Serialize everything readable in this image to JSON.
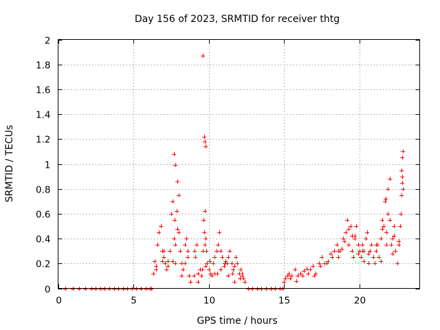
{
  "chart_data": {
    "type": "scatter",
    "title": "Day 156 of 2023, SRMTID for receiver thtg",
    "xlabel": "GPS time / hours",
    "ylabel": "SRMTID / TECUs",
    "xlim": [
      0,
      24
    ],
    "ylim": [
      0,
      2
    ],
    "x_ticks": [
      0,
      5,
      10,
      15,
      20
    ],
    "x_tick_labels": [
      "0",
      "5",
      "10",
      "15",
      "20"
    ],
    "y_ticks": [
      0,
      0.2,
      0.4,
      0.6,
      0.8,
      1,
      1.2,
      1.4,
      1.6,
      1.8,
      2
    ],
    "y_tick_labels": [
      "0",
      "0.2",
      "0.4",
      "0.6",
      "0.8",
      "1",
      "1.2",
      "1.4",
      "1.6",
      "1.8",
      "2"
    ],
    "grid": true,
    "marker": "+",
    "color": "#ff0000",
    "series": [
      {
        "name": "SRMTID",
        "x": [
          0.5,
          1.0,
          1.4,
          1.8,
          2.2,
          2.5,
          2.8,
          3.1,
          3.4,
          3.7,
          4.0,
          4.3,
          4.6,
          4.9,
          5.2,
          5.5,
          5.8,
          6.1,
          6.2,
          6.3,
          6.4,
          6.5,
          6.6,
          6.7,
          6.8,
          6.9,
          7.0,
          7.1,
          7.2,
          7.3,
          7.4,
          7.5,
          7.6,
          7.7,
          7.75,
          7.8,
          7.85,
          7.9,
          8.0,
          8.1,
          8.2,
          8.3,
          8.4,
          8.5,
          8.6,
          8.7,
          8.8,
          9.0,
          9.1,
          9.2,
          9.3,
          9.4,
          9.5,
          9.6,
          9.65,
          9.7,
          9.72,
          9.75,
          9.8,
          9.85,
          9.9,
          10.0,
          10.1,
          10.2,
          10.3,
          10.4,
          10.5,
          10.6,
          10.7,
          10.8,
          10.9,
          11.0,
          11.1,
          11.2,
          11.3,
          11.4,
          11.5,
          11.6,
          11.7,
          11.8,
          11.9,
          12.0,
          12.1,
          12.2,
          12.3,
          12.4,
          12.6,
          12.9,
          13.2,
          13.5,
          13.8,
          14.1,
          14.4,
          14.7,
          14.9,
          15.0,
          15.1,
          15.2,
          15.3,
          15.5,
          15.7,
          15.9,
          16.1,
          16.3,
          16.5,
          16.7,
          16.9,
          17.1,
          17.3,
          17.5,
          17.7,
          17.9,
          18.1,
          18.3,
          18.5,
          18.6,
          18.7,
          18.9,
          19.1,
          19.2,
          19.3,
          19.4,
          19.5,
          19.6,
          19.7,
          19.8,
          19.9,
          20.0,
          20.1,
          20.2,
          20.3,
          20.4,
          20.5,
          20.6,
          20.7,
          20.8,
          20.9,
          21.0,
          21.1,
          21.2,
          21.3,
          21.4,
          21.5,
          21.6,
          21.7,
          21.8,
          21.9,
          22.0,
          22.1,
          22.2,
          22.3,
          22.4,
          22.5,
          22.6,
          22.7,
          22.75,
          22.8,
          22.85,
          22.9,
          6.5,
          6.9,
          7.3,
          7.8,
          8.2,
          8.6,
          9.3,
          9.8,
          10.4,
          10.8,
          11.3,
          11.7,
          12.2,
          15.4,
          15.8,
          16.2,
          16.6,
          17.0,
          17.4,
          17.8,
          18.2,
          18.8,
          19.0,
          19.5,
          19.9,
          20.3,
          20.7,
          21.1,
          21.5,
          21.9,
          22.3,
          22.6,
          7.0,
          7.6,
          8.0,
          8.4,
          9.05,
          9.55,
          10.05,
          10.55,
          11.05,
          11.55,
          12.05,
          18.6,
          19.3,
          19.7,
          20.2,
          20.6,
          21.0,
          21.4,
          21.8,
          22.2,
          22.7,
          22.8,
          22.85,
          22.9,
          7.7,
          7.8,
          7.9,
          9.7,
          9.75,
          9.8,
          9.62,
          21.75,
          22.0,
          22.85
        ],
        "y": [
          0,
          0,
          0,
          0,
          0,
          0,
          0,
          0,
          0,
          0,
          0,
          0,
          0,
          0,
          0,
          0,
          0,
          0,
          0,
          0.12,
          0.22,
          0.18,
          0.35,
          0.45,
          0.5,
          0.3,
          0.25,
          0.2,
          0.15,
          0.22,
          0.3,
          0.6,
          0.7,
          0.4,
          0.55,
          0.35,
          0.62,
          0.48,
          0.75,
          0.3,
          0.2,
          0.15,
          0.35,
          0.4,
          0.3,
          0.1,
          0.05,
          0.1,
          0.25,
          0.35,
          0.05,
          0.15,
          0.1,
          0.3,
          0.55,
          0.45,
          0.62,
          0.35,
          0.4,
          0.3,
          0.2,
          0.15,
          0.12,
          0.1,
          0.2,
          0.25,
          0.3,
          0.35,
          0.45,
          0.3,
          0.25,
          0.18,
          0.22,
          0.2,
          0.25,
          0.3,
          0.2,
          0.15,
          0.18,
          0.25,
          0.2,
          0.12,
          0.15,
          0.1,
          0.08,
          0.05,
          0,
          0,
          0,
          0,
          0,
          0,
          0,
          0,
          0,
          0.05,
          0.08,
          0.1,
          0.12,
          0.1,
          0.15,
          0.1,
          0.12,
          0.14,
          0.16,
          0.15,
          0.18,
          0.12,
          0.2,
          0.25,
          0.2,
          0.22,
          0.28,
          0.3,
          0.35,
          0.3,
          0.3,
          0.4,
          0.45,
          0.55,
          0.35,
          0.5,
          0.3,
          0.25,
          0.4,
          0.5,
          0.35,
          0.3,
          0.25,
          0.35,
          0.3,
          0.4,
          0.45,
          0.2,
          0.3,
          0.35,
          0.25,
          0.2,
          0.3,
          0.35,
          0.25,
          0.4,
          0.55,
          0.5,
          0.7,
          0.45,
          0.8,
          0.55,
          0.35,
          0.4,
          0.5,
          0.3,
          0.2,
          0.35,
          0.5,
          0.6,
          0.95,
          0.85,
          0.8,
          0.15,
          0.22,
          0.18,
          0.2,
          0.1,
          0.25,
          0.12,
          0.18,
          0.12,
          0.15,
          0.1,
          0.05,
          0.12,
          0.08,
          0.06,
          0.1,
          0.12,
          0.1,
          0.18,
          0.2,
          0.25,
          0.32,
          0.38,
          0.42,
          0.28,
          0.22,
          0.3,
          0.35,
          0.48,
          0.6,
          0.42,
          0.38,
          0.3,
          0.22,
          0.45,
          0.2,
          0.3,
          0.15,
          0.22,
          0.12,
          0.2,
          0.12,
          0.08,
          0.25,
          0.48,
          0.42,
          0.3,
          0.28,
          0.2,
          0.22,
          0.35,
          0.28,
          0.5,
          0.75,
          1.05,
          1.1,
          1.08,
          0.99,
          0.86,
          1.22,
          1.18,
          1.14,
          1.87,
          0.72,
          0.88,
          0.9
        ]
      }
    ]
  }
}
